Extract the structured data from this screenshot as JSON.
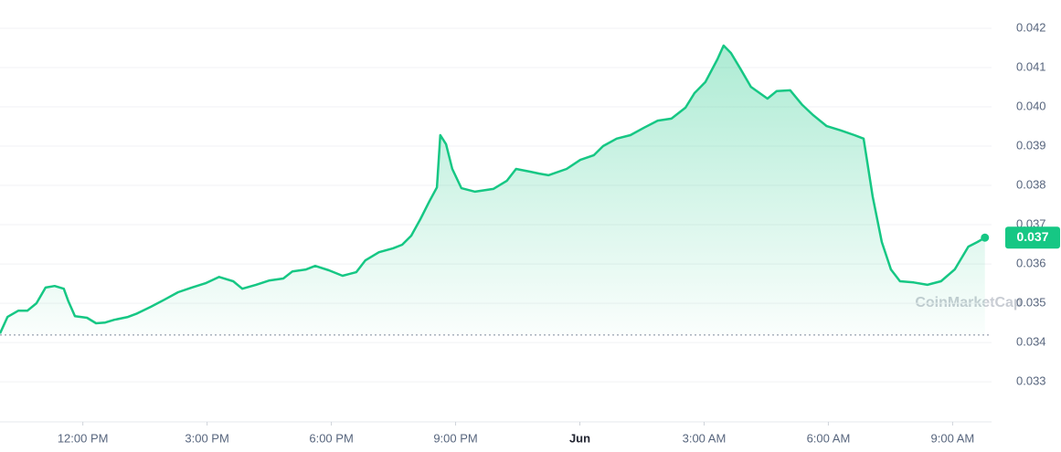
{
  "chart_data": {
    "type": "line",
    "watermark": "CoinMarketCap",
    "x": [
      10.0,
      10.18,
      10.44,
      10.66,
      10.88,
      11.1,
      11.32,
      11.54,
      11.65,
      11.81,
      12.1,
      12.32,
      12.54,
      12.76,
      13.09,
      13.31,
      13.64,
      13.97,
      14.3,
      14.63,
      14.96,
      15.29,
      15.63,
      15.85,
      16.18,
      16.51,
      16.84,
      17.06,
      17.39,
      17.61,
      17.94,
      18.27,
      18.6,
      18.82,
      19.15,
      19.49,
      19.71,
      19.93,
      20.15,
      20.37,
      20.55,
      20.63,
      20.77,
      20.92,
      21.14,
      21.47,
      21.91,
      22.24,
      22.46,
      22.8,
      23.02,
      23.24,
      23.68,
      24.01,
      24.34,
      24.56,
      24.89,
      25.22,
      25.55,
      25.88,
      26.21,
      26.55,
      26.77,
      27.03,
      27.32,
      27.47,
      27.65,
      27.87,
      28.13,
      28.53,
      28.75,
      29.08,
      29.37,
      29.63,
      29.96,
      30.3,
      30.63,
      30.85,
      31.07,
      31.29,
      31.51,
      31.73,
      32.06,
      32.39,
      32.72,
      33.05,
      33.38,
      33.6,
      33.78
    ],
    "series": [
      {
        "color": "#16c784",
        "values": [
          0.03423,
          0.03465,
          0.03481,
          0.03481,
          0.035,
          0.0354,
          0.03544,
          0.03537,
          0.03505,
          0.03467,
          0.03463,
          0.03449,
          0.03451,
          0.03458,
          0.03465,
          0.03474,
          0.03491,
          0.03509,
          0.03528,
          0.0354,
          0.03551,
          0.03567,
          0.03556,
          0.03537,
          0.03547,
          0.03558,
          0.03563,
          0.03581,
          0.03586,
          0.03595,
          0.03584,
          0.0357,
          0.03579,
          0.03609,
          0.0363,
          0.0364,
          0.03649,
          0.03672,
          0.03714,
          0.0376,
          0.03795,
          0.03928,
          0.03905,
          0.03842,
          0.03793,
          0.03784,
          0.03791,
          0.03812,
          0.03842,
          0.03835,
          0.0383,
          0.03826,
          0.03842,
          0.03865,
          0.03877,
          0.039,
          0.03919,
          0.03928,
          0.03947,
          0.03965,
          0.0397,
          0.03998,
          0.04035,
          0.04063,
          0.04121,
          0.04156,
          0.04137,
          0.04098,
          0.04051,
          0.04021,
          0.0404,
          0.04042,
          0.04005,
          0.03979,
          0.03951,
          0.0394,
          0.03928,
          0.03919,
          0.03772,
          0.03656,
          0.03586,
          0.03556,
          0.03553,
          0.03547,
          0.03556,
          0.03586,
          0.03644,
          0.03656,
          0.03667
        ]
      }
    ],
    "last_label": "0.037",
    "reference_line": 0.03419,
    "xlim": [
      10,
      33.94
    ],
    "xticks": [
      {
        "value": 12,
        "label": "12:00 PM"
      },
      {
        "value": 15,
        "label": "3:00 PM"
      },
      {
        "value": 18,
        "label": "6:00 PM"
      },
      {
        "value": 21,
        "label": "9:00 PM"
      },
      {
        "value": 24,
        "label": "Jun"
      },
      {
        "value": 27,
        "label": "3:00 AM"
      },
      {
        "value": 30,
        "label": "6:00 AM"
      },
      {
        "value": 33,
        "label": "9:00 AM"
      }
    ],
    "ylim": [
      0.03198,
      0.04272
    ],
    "yticks": [
      0.033,
      0.034,
      0.035,
      0.036,
      0.037,
      0.038,
      0.039,
      {
        "value": 0.04,
        "label": "0.040"
      },
      0.041,
      0.042
    ],
    "grid": true
  }
}
